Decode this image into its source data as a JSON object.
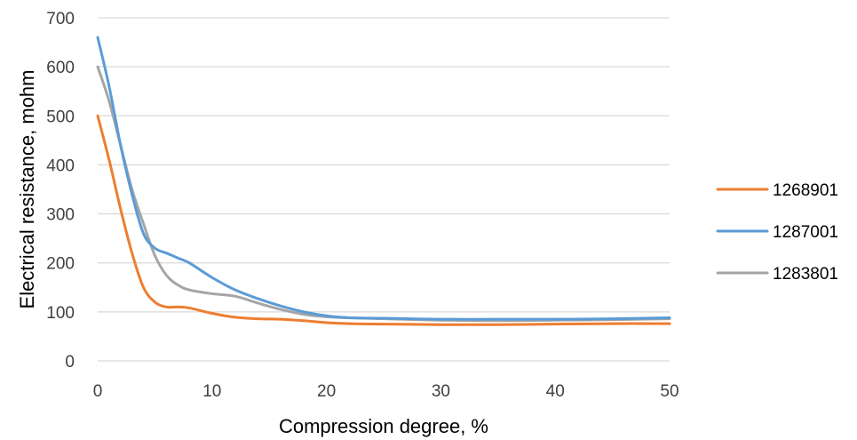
{
  "chart_data": {
    "type": "line",
    "xlabel": "Compression degree, %",
    "ylabel": "Electrical resistance, mohm",
    "xlim": [
      0,
      50
    ],
    "ylim": [
      0,
      700
    ],
    "x_ticks": [
      "0",
      "10",
      "20",
      "30",
      "40",
      "50"
    ],
    "y_ticks": [
      "0",
      "100",
      "200",
      "300",
      "400",
      "500",
      "600",
      "700"
    ],
    "grid": "horizontal",
    "legend_position": "right",
    "series": [
      {
        "name": "1268901",
        "color": "#ed7d31",
        "x": [
          0,
          1,
          2,
          3,
          4,
          5,
          6,
          7,
          8,
          10,
          12,
          14,
          16,
          18,
          20,
          22,
          25,
          30,
          35,
          40,
          45,
          50
        ],
        "y": [
          500,
          410,
          310,
          220,
          150,
          120,
          110,
          110,
          108,
          97,
          89,
          86,
          85,
          82,
          78,
          76,
          75,
          74,
          74,
          75,
          76,
          76
        ]
      },
      {
        "name": "1287001",
        "color": "#5b9bd5",
        "x": [
          0,
          1,
          2,
          3,
          4,
          5,
          6,
          7,
          8,
          10,
          12,
          14,
          16,
          18,
          20,
          22,
          25,
          30,
          35,
          40,
          45,
          50
        ],
        "y": [
          660,
          560,
          440,
          340,
          260,
          230,
          220,
          210,
          200,
          170,
          145,
          127,
          112,
          100,
          92,
          88,
          87,
          85,
          85,
          85,
          86,
          88
        ]
      },
      {
        "name": "1283801",
        "color": "#a5a5a5",
        "x": [
          0,
          1,
          2,
          3,
          4,
          5,
          6,
          7,
          8,
          10,
          12,
          14,
          16,
          18,
          20,
          22,
          25,
          30,
          35,
          40,
          45,
          50
        ],
        "y": [
          600,
          530,
          440,
          350,
          280,
          215,
          175,
          155,
          145,
          137,
          132,
          118,
          105,
          95,
          90,
          88,
          86,
          83,
          82,
          83,
          84,
          86
        ]
      }
    ]
  }
}
